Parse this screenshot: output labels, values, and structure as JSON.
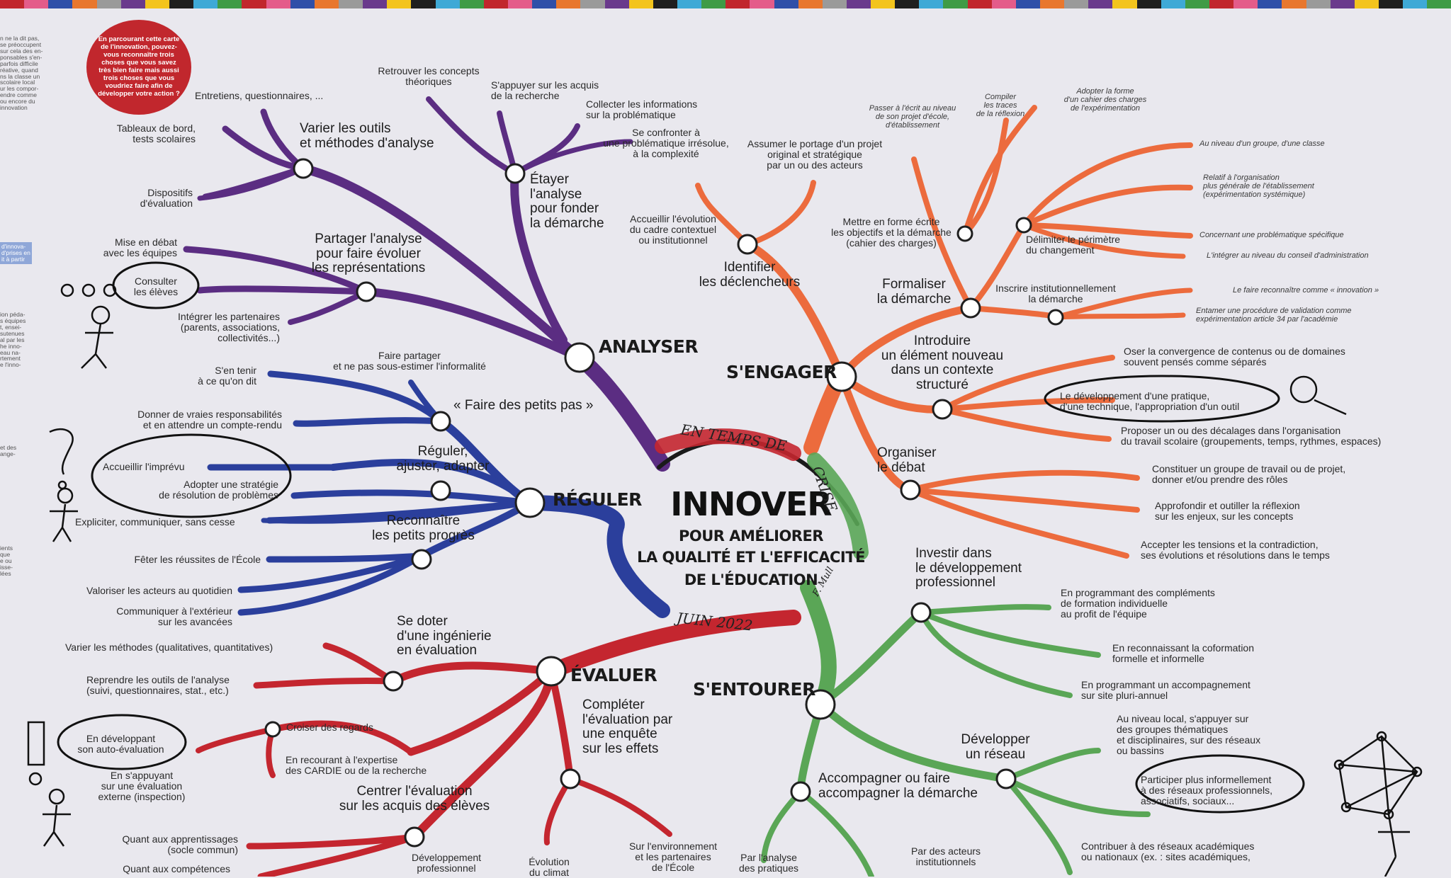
{
  "palette": [
    "#c1272d",
    "#e8772e",
    "#f3c41d",
    "#3f9b46",
    "#2f4fa8",
    "#6a3a8c",
    "#3fa9d6",
    "#e45c8a",
    "#9a9a9a",
    "#1f1f1f"
  ],
  "colors": {
    "analyser": "#5b2d82",
    "reguler": "#2b3f9c",
    "evaluer": "#c4262f",
    "sengager": "#ec6b3d",
    "sentourer": "#5aa656",
    "badge": "#c1272d"
  },
  "center": {
    "title": "INNOVER",
    "subtitle": [
      "POUR AMÉLIORER",
      "LA QUALITÉ ET L'EFFICACITÉ",
      "DE L'ÉDUCATION"
    ]
  },
  "handwriting": {
    "top": "EN TEMPS DE",
    "right": "CRISE",
    "date": "JUIN 2022",
    "signature": "F. Mull"
  },
  "badge": "En parcourant cette carte de l'innovation, pouvez-vous reconnaître trois choses que vous savez très bien faire mais aussi trois choses que vous voudriez faire afin de développer votre action ?",
  "branches": {
    "analyser": {
      "label": "ANALYSER",
      "nodes": {
        "varier": "Varier les outils\net méthodes d'analyse",
        "etayer": "Étayer\nl'analyse\npour fonder\nla démarche",
        "partager": "Partager l'analyse\npour faire évoluer\nles représentations"
      },
      "leaves": {
        "entretiens": "Entretiens, questionnaires, ...",
        "tableaux": "Tableaux de bord,\ntests scolaires",
        "dispositifs": "Dispositifs\nd'évaluation",
        "retrouver": "Retrouver les concepts\nthéoriques",
        "appuyer": "S'appuyer sur les acquis\nde la recherche",
        "collecter": "Collecter les informations\nsur la problématique",
        "confronter": "Se confronter à\nune problématique irrésolue,\nà la complexité",
        "debat": "Mise en débat\navec les équipes",
        "consulter": "Consulter\nles élèves",
        "integrer": "Intégrer les partenaires\n(parents, associations,\ncollectivités...)"
      }
    },
    "reguler": {
      "label": "RÉGULER",
      "nodes": {
        "petits_pas": "« Faire des petits pas »",
        "ajuster": "Réguler,\najuster, adapter",
        "progres": "Reconnaître\nles petits progrès"
      },
      "leaves": {
        "tenir": "S'en tenir\nà ce qu'on dit",
        "informalite": "Faire partager\net ne pas sous-estimer l'informalité",
        "responsabilites": "Donner de vraies responsabilités\net en attendre un compte-rendu",
        "imprevu": "Accueillir l'imprévu",
        "strategie": "Adopter une stratégie\nde résolution de problèmes",
        "expliciter": "Expliciter, communiquer, sans cesse",
        "feter": "Fêter les réussites de l'École",
        "valoriser": "Valoriser les acteurs au quotidien",
        "communiquer": "Communiquer à l'extérieur\nsur les avancées"
      }
    },
    "evaluer": {
      "label": "ÉVALUER",
      "nodes": {
        "ingenierie": "Se doter\nd'une ingénierie\nen évaluation",
        "croiser": "Croiser des regards",
        "completer": "Compléter\nl'évaluation par\nune enquête\nsur les effets",
        "centrer": "Centrer l'évaluation\nsur les acquis des élèves"
      },
      "leaves": {
        "methodes": "Varier les méthodes (qualitatives, quantitatives)",
        "outils": "Reprendre les outils de l'analyse\n(suivi, questionnaires, stat., etc.)",
        "auto": "En développant\nson auto-évaluation",
        "expertise": "En recourant à l'expertise\ndes CARDIE ou de la recherche",
        "externe": "En s'appuyant\nsur une évaluation\nexterne (inspection)",
        "apprentissages": "Quant aux apprentissages\n(socle commun)",
        "competences": "Quant aux compétences",
        "devpro": "Développement\nprofessionnel",
        "climat": "Évolution\ndu climat",
        "environnement": "Sur l'environnement\net les partenaires\nde l'École"
      }
    },
    "sengager": {
      "label": "S'ENGAGER",
      "nodes": {
        "declencheurs": "Identifier\nles déclencheurs",
        "formaliser": "Formaliser\nla démarche",
        "introduire": "Introduire\nun élément nouveau\ndans un contexte\nstructuré",
        "organiser": "Organiser\nle débat"
      },
      "leaves": {
        "accueillir": "Accueillir l'évolution\ndu cadre contextuel\nou institutionnel",
        "portage": "Assumer le portage d'un projet\noriginal et stratégique\npar un ou des acteurs",
        "ecrit": "Passer à l'écrit au niveau\nde son projet d'école,\nd'établissement",
        "traces": "Compiler\nles traces\nde la réflexion",
        "cahier": "Adopter la forme\nd'un cahier des charges\nde l'expérimentation",
        "mettre": "Mettre en forme écrite\nles objectifs et la démarche\n(cahier des charges)",
        "perimetre": "Délimiter le périmètre\ndu changement",
        "groupe": "Au niveau d'un groupe, d'une classe",
        "organisation": "Relatif à l'organisation\nplus générale de l'établissement\n(expérimentation systémique)",
        "problematique": "Concernant une problématique spécifique",
        "ca": "L'intégrer au niveau du conseil d'administration",
        "inscrire": "Inscrire institutionnellement\nla démarche",
        "reconnaitre": "Le faire reconnaître comme « innovation »",
        "validation": "Entamer une procédure de validation comme\nexpérimentation article 34 par l'académie",
        "convergence": "Oser la convergence de contenus ou de domaines\nsouvent pensés comme séparés",
        "pratique": "Le développement d'une pratique,\nd'une technique, l'appropriation d'un outil",
        "decalages": "Proposer un ou des décalages dans l'organisation\ndu travail scolaire (groupements, temps, rythmes, espaces)",
        "groupe_travail": "Constituer un groupe de travail ou de projet,\ndonner et/ou prendre des rôles",
        "reflexion": "Approfondir et outiller la réflexion\nsur les enjeux, sur les concepts",
        "tensions": "Accepter les tensions et la contradiction,\nses évolutions et résolutions dans le temps"
      }
    },
    "sentourer": {
      "label": "S'ENTOURER",
      "nodes": {
        "investir": "Investir dans\nle développement\nprofessionnel",
        "reseau": "Développer\nun réseau",
        "accompagner": "Accompagner ou faire\naccompagner la démarche"
      },
      "leaves": {
        "complements": "En programmant des compléments\nde formation individuelle\nau profit de l'équipe",
        "coformation": "En reconnaissant la coformation\nformelle et informelle",
        "pluriannuel": "En programmant un accompagnement\nsur site pluri-annuel",
        "local": "Au niveau local, s'appuyer sur\ndes groupes thématiques\net disciplinaires, sur des réseaux\nou bassins",
        "participer": "Participer plus informellement\nà des réseaux professionnels,\nassociatifs, sociaux...",
        "contribuer": "Contribuer à des réseaux académiques\nou nationaux (ex. : sites académiques,",
        "institutionnels": "Par des acteurs\ninstitutionnels",
        "analyse_pratiques": "Par l'analyse\ndes pratiques"
      }
    }
  },
  "margin_text": {
    "top": "n ne la dit pas,\nse préoccupent\nsur cela des en-\nponsables s'en-\nparfois difficile\nréative, quand\nns la classe un\nscolaire local\nur les compor-\nendre comme\nou encore du\ninnovation",
    "box": "d'innova-\nd'prises en\nit à partir",
    "middle": "ion péda-\ns équipes\nt, ensei-\nsutenues\nal par les\nhe inno-\neau na-\nrtement\ne l'inno-",
    "lower": "et des\nange-",
    "bottom": "ients\nque\ne ou\nisse-\nlées"
  }
}
